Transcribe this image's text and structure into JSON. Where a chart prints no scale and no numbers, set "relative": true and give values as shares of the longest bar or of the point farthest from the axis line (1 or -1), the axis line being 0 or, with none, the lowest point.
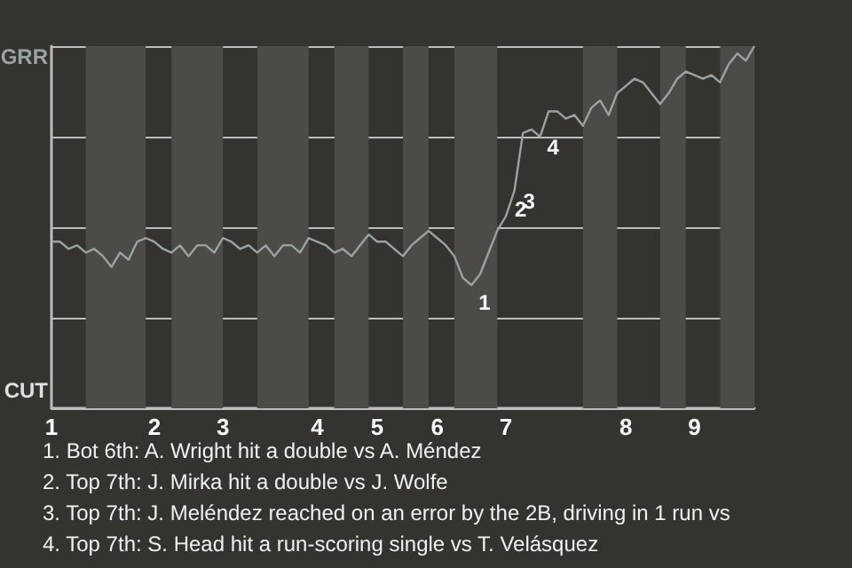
{
  "chart_data": {
    "type": "line",
    "categories": [
      "1",
      null,
      null,
      null,
      null,
      null,
      null,
      null,
      null,
      null,
      null,
      null,
      "2",
      null,
      null,
      null,
      null,
      null,
      null,
      null,
      "3",
      null,
      null,
      null,
      null,
      null,
      null,
      null,
      null,
      null,
      null,
      "4",
      null,
      null,
      null,
      null,
      null,
      null,
      "5",
      null,
      null,
      null,
      null,
      null,
      null,
      "6",
      null,
      null,
      null,
      null,
      null,
      null,
      null,
      "7",
      null,
      null,
      null,
      null,
      null,
      null,
      null,
      null,
      null,
      null,
      null,
      null,
      null,
      "8",
      null,
      null,
      null,
      null,
      null,
      null,
      null,
      "9",
      null,
      null,
      null,
      null,
      null,
      null,
      null
    ],
    "series": [
      {
        "color": "#9aa3a3",
        "values": [
          0.46,
          0.46,
          0.44,
          0.45,
          0.43,
          0.44,
          0.42,
          0.39,
          0.43,
          0.41,
          0.46,
          0.47,
          0.46,
          0.44,
          0.43,
          0.45,
          0.42,
          0.45,
          0.45,
          0.43,
          0.47,
          0.46,
          0.44,
          0.45,
          0.43,
          0.45,
          0.42,
          0.45,
          0.45,
          0.43,
          0.47,
          0.46,
          0.45,
          0.43,
          0.44,
          0.42,
          0.45,
          0.48,
          0.46,
          0.46,
          0.44,
          0.42,
          0.45,
          0.47,
          0.49,
          0.47,
          0.45,
          0.42,
          0.36,
          0.34,
          0.37,
          0.43,
          0.49,
          0.53,
          0.6,
          0.76,
          0.77,
          0.75,
          0.82,
          0.82,
          0.8,
          0.81,
          0.78,
          0.83,
          0.85,
          0.81,
          0.87,
          0.89,
          0.91,
          0.9,
          0.87,
          0.84,
          0.87,
          0.91,
          0.93,
          0.92,
          0.91,
          0.92,
          0.9,
          0.95,
          0.98,
          0.96,
          1.0
        ],
        "name": null
      }
    ],
    "relative": true,
    "grid": "y",
    "marker": "none",
    "annotations": [
      "GRR",
      "CUT",
      "1",
      "2",
      "3",
      "4",
      "1. Bot 6th: A. Wright hit a double vs A. Méndez",
      "2. Top 7th: J. Mirka hit a double vs J. Wolfe",
      "3. Top 7th: J. Meléndez reached on an error by the 2B, driving in 1 run vs",
      "4. Top 7th: S. Head hit a run-scoring single vs T. Velásquez"
    ]
  }
}
